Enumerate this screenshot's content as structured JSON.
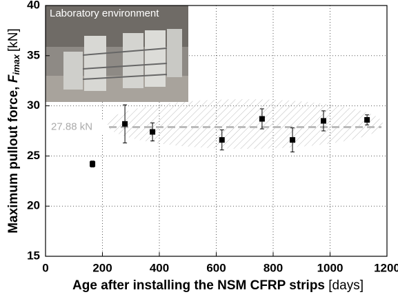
{
  "chart_data": {
    "type": "scatter",
    "x_label": {
      "text": "Age after installing the NSM CFRP strips",
      "unit": "[days]"
    },
    "y_label": {
      "text": "Maximum pullout force, ",
      "symbol": "F",
      "subscript": "imax",
      "unit": "[kN]"
    },
    "inset_label": "Laboratory environment",
    "series": [
      {
        "color": "#000000",
        "x": [
          165,
          279,
          376,
          620,
          761,
          868,
          977,
          1130
        ],
        "values": [
          24.2,
          28.2,
          27.4,
          26.6,
          28.7,
          26.6,
          28.5,
          28.6
        ],
        "errors": [
          0.3,
          1.9,
          0.9,
          1.0,
          1.0,
          1.2,
          1.0,
          0.5
        ]
      }
    ],
    "mean": {
      "value": 27.88,
      "label": "27.88 kN"
    },
    "xlim": [
      0,
      1200
    ],
    "xticks": [
      0,
      200,
      400,
      600,
      800,
      1000,
      1200
    ],
    "ylim": [
      15,
      40
    ],
    "yticks": [
      15,
      20,
      25,
      30,
      35,
      40
    ],
    "grid": true
  }
}
